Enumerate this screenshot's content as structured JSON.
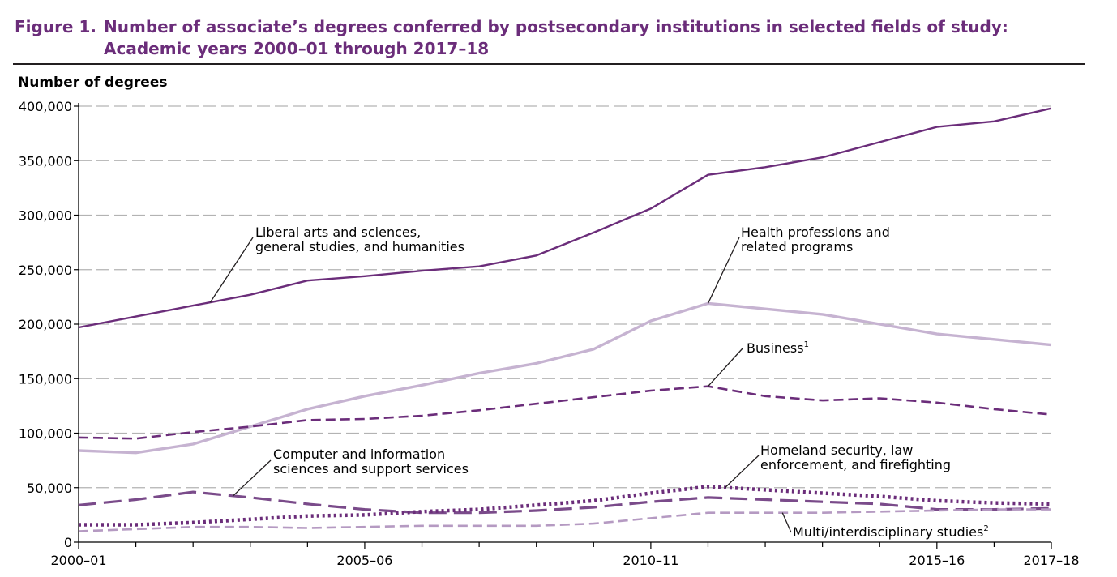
{
  "figure": {
    "label": "Figure 1.",
    "title": "Number of associate’s degrees conferred by postsecondary institutions in selected fields of study: Academic years 2000–01 through 2017–18"
  },
  "chart_data": {
    "type": "line",
    "ylabel": "Number of degrees",
    "ylim": [
      0,
      400000
    ],
    "yticks": [
      0,
      50000,
      100000,
      150000,
      200000,
      250000,
      300000,
      350000,
      400000
    ],
    "ytick_labels": [
      "0",
      "50,000",
      "100,000",
      "150,000",
      "200,000",
      "250,000",
      "300,000",
      "350,000",
      "400,000"
    ],
    "x": [
      "2000–01",
      "2001–02",
      "2002–03",
      "2003–04",
      "2004–05",
      "2005–06",
      "2006–07",
      "2007–08",
      "2008–09",
      "2009–10",
      "2010–11",
      "2011–12",
      "2012–13",
      "2013–14",
      "2014–15",
      "2015–16",
      "2016–17",
      "2017–18"
    ],
    "xtick_labels": {
      "0": "2000–01",
      "5": "2005–06",
      "10": "2010–11",
      "15": "2015–16",
      "17": "2017–18"
    },
    "grid": "horizontal dashed",
    "series": [
      {
        "name": "Liberal arts and sciences, general studies, and humanities",
        "color": "#6b2d7a",
        "style": "solid",
        "values": [
          197000,
          207000,
          217000,
          227000,
          240000,
          244000,
          249000,
          253000,
          263000,
          284000,
          306000,
          337000,
          344000,
          353000,
          367000,
          381000,
          386000,
          398000
        ]
      },
      {
        "name": "Health professions and related programs",
        "color": "#c6b3d1",
        "style": "solid",
        "values": [
          84000,
          82000,
          90000,
          106000,
          122000,
          134000,
          144000,
          155000,
          164000,
          177000,
          203000,
          219000,
          214000,
          209000,
          200000,
          191000,
          186000,
          181000
        ]
      },
      {
        "name": "Business",
        "color": "#6b2d7a",
        "style": "dashed",
        "values": [
          96000,
          95000,
          101000,
          106000,
          112000,
          113000,
          116000,
          121000,
          127000,
          133000,
          139000,
          143000,
          134000,
          130000,
          132000,
          128000,
          122000,
          117000
        ]
      },
      {
        "name": "Computer and information sciences and support services",
        "color": "#7a4b8a",
        "style": "longdash",
        "values": [
          34000,
          39000,
          46000,
          41000,
          35000,
          30000,
          27000,
          27000,
          29000,
          32000,
          37000,
          41000,
          39000,
          37000,
          35000,
          30000,
          30000,
          31000
        ]
      },
      {
        "name": "Homeland security, law enforcement, and firefighting",
        "color": "#6b2d7a",
        "style": "dotted",
        "values": [
          16000,
          16000,
          18000,
          21000,
          24000,
          25000,
          28000,
          30000,
          34000,
          38000,
          45000,
          51000,
          48000,
          45000,
          42000,
          38000,
          36000,
          35000
        ]
      },
      {
        "name": "Multi/interdisciplinary studies",
        "color": "#b59ac2",
        "style": "dashed",
        "values": [
          10000,
          12000,
          14000,
          14000,
          13000,
          14000,
          15000,
          15000,
          15000,
          17000,
          22000,
          27000,
          27000,
          27000,
          28000,
          29000,
          30000,
          30000
        ]
      }
    ],
    "annotations": [
      {
        "series": 0,
        "lines": [
          "Liberal arts and sciences,",
          "general studies, and humanities"
        ],
        "sup": ""
      },
      {
        "series": 1,
        "lines": [
          "Health professions and",
          "related programs"
        ],
        "sup": ""
      },
      {
        "series": 2,
        "lines": [
          "Business"
        ],
        "sup": "1"
      },
      {
        "series": 3,
        "lines": [
          "Computer and information",
          "sciences and support services"
        ],
        "sup": ""
      },
      {
        "series": 4,
        "lines": [
          "Homeland security, law",
          "enforcement, and firefighting"
        ],
        "sup": ""
      },
      {
        "series": 5,
        "lines": [
          "Multi/interdisciplinary studies"
        ],
        "sup": "2"
      }
    ]
  }
}
